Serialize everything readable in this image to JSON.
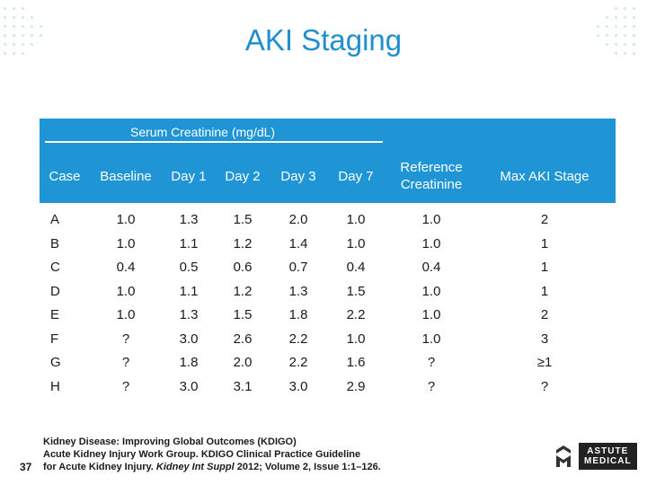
{
  "title": "AKI Staging",
  "table": {
    "group_header": "Serum Creatinine (mg/dL)",
    "columns": [
      "Case",
      "Baseline",
      "Day 1",
      "Day 2",
      "Day 3",
      "Day 7",
      "Reference\nCreatinine",
      "Max AKI Stage"
    ],
    "rows": [
      [
        "A",
        "1.0",
        "1.3",
        "1.5",
        "2.0",
        "1.0",
        "1.0",
        "2"
      ],
      [
        "B",
        "1.0",
        "1.1",
        "1.2",
        "1.4",
        "1.0",
        "1.0",
        "1"
      ],
      [
        "C",
        "0.4",
        "0.5",
        "0.6",
        "0.7",
        "0.4",
        "0.4",
        "1"
      ],
      [
        "D",
        "1.0",
        "1.1",
        "1.2",
        "1.3",
        "1.5",
        "1.0",
        "1"
      ],
      [
        "E",
        "1.0",
        "1.3",
        "1.5",
        "1.8",
        "2.2",
        "1.0",
        "2"
      ],
      [
        "F",
        "?",
        "3.0",
        "2.6",
        "2.2",
        "1.0",
        "1.0",
        "3"
      ],
      [
        "G",
        "?",
        "1.8",
        "2.0",
        "2.2",
        "1.6",
        "?",
        "≥1"
      ],
      [
        "H",
        "?",
        "3.0",
        "3.1",
        "3.0",
        "2.9",
        "?",
        "?"
      ]
    ]
  },
  "citation": {
    "line1": "Kidney Disease: Improving Global Outcomes (KDIGO)",
    "line2": "Acute Kidney Injury Work Group. KDIGO Clinical Practice Guideline",
    "line3_pre": "for Acute Kidney Injury. ",
    "line3_journal": "Kidney Int Suppl",
    "line3_post": " 2012; Volume 2, Issue 1:1–126."
  },
  "slide_number": "37",
  "logo": {
    "line1": "ASTUTE",
    "line2": "MEDICAL",
    "icon": "astute-medical-logo-icon"
  },
  "colors": {
    "title": "#1f8fd0",
    "header_band": "#1f95d6"
  }
}
